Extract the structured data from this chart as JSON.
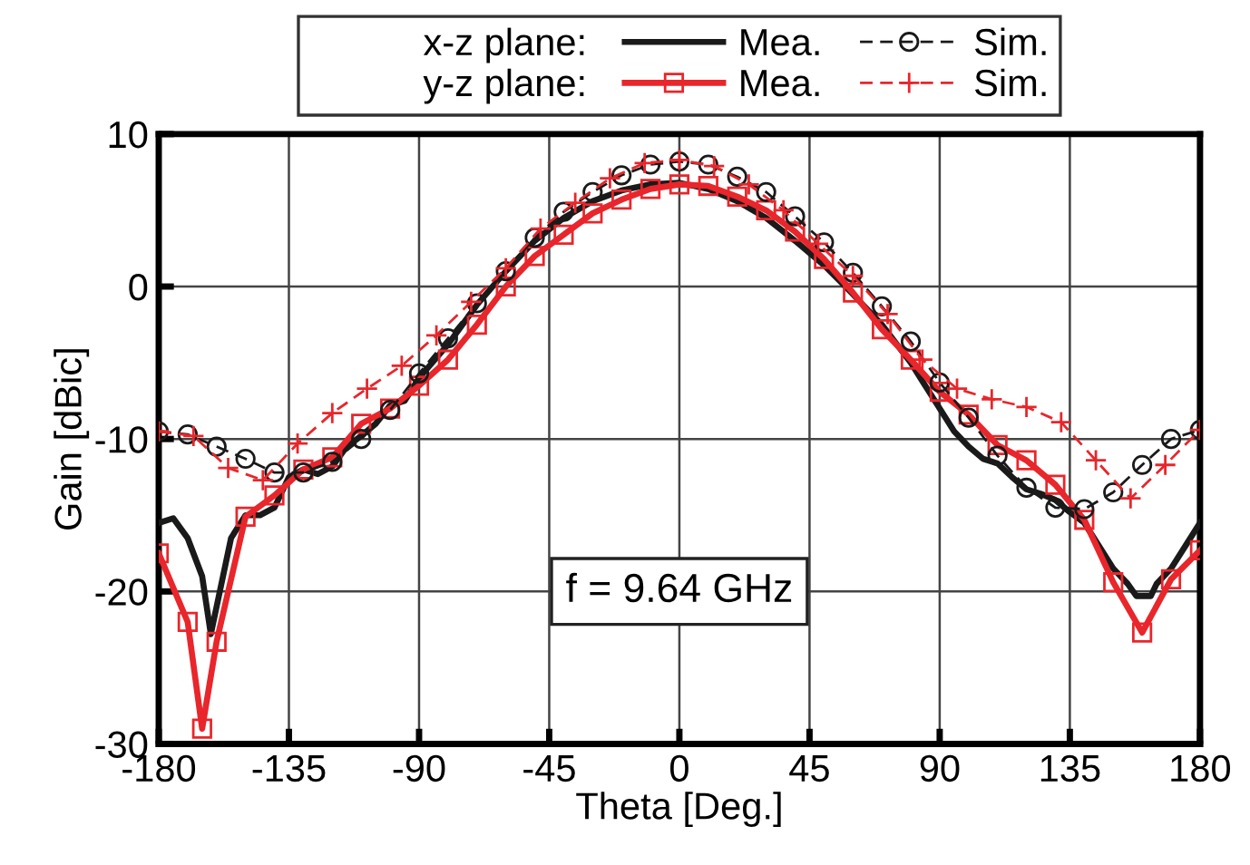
{
  "chart_data": {
    "type": "line",
    "xlabel": "Theta [Deg.]",
    "ylabel": "Gain [dBic]",
    "annotations": [
      "x-z plane:",
      "y-z plane:",
      "f = 9.64 GHz"
    ],
    "xlim": [
      -180,
      180
    ],
    "xticks": [
      -180,
      -135,
      -90,
      -45,
      0,
      45,
      90,
      135,
      180
    ],
    "ylim": [
      -30,
      10
    ],
    "yticks": [
      -30,
      -20,
      -10,
      0,
      10
    ],
    "grid": true,
    "legend": "top",
    "series": [
      {
        "name": "Mea.",
        "color": "#1a1a1a",
        "marker": "none",
        "line_style": "solid",
        "x": [
          -180,
          -175,
          -170,
          -165,
          -162,
          -160,
          -155,
          -150,
          -145,
          -140,
          -135,
          -130,
          -125,
          -120,
          -115,
          -110,
          -105,
          -100,
          -95,
          -90,
          -80,
          -70,
          -60,
          -50,
          -40,
          -30,
          -20,
          -10,
          0,
          10,
          20,
          30,
          40,
          50,
          60,
          70,
          80,
          90,
          95,
          100,
          105,
          110,
          115,
          120,
          125,
          130,
          135,
          140,
          145,
          150,
          155,
          158,
          163,
          165,
          170,
          175,
          180
        ],
        "values": [
          -15.5,
          -15.2,
          -16.5,
          -19,
          -22.8,
          -21,
          -16.5,
          -15,
          -15,
          -14.5,
          -12.5,
          -12,
          -12.3,
          -11.8,
          -10.5,
          -9.8,
          -9,
          -7.8,
          -7.5,
          -6,
          -3.8,
          -1.2,
          1,
          3,
          4.5,
          5.6,
          6.3,
          6.7,
          6.8,
          6.4,
          5.6,
          4.5,
          3,
          1.4,
          -0.5,
          -2.5,
          -5,
          -8,
          -9.5,
          -10.5,
          -11.3,
          -11.6,
          -12.5,
          -13.3,
          -13.6,
          -14,
          -14.8,
          -15.5,
          -17,
          -18.5,
          -19.5,
          -20.3,
          -20.3,
          -19.5,
          -18.5,
          -17,
          -15.5
        ]
      },
      {
        "name": "Mea.",
        "color": "#e8262b",
        "marker": "square",
        "line_style": "solid",
        "x": [
          -180,
          -170,
          -165,
          -160,
          -150,
          -140,
          -130,
          -120,
          -110,
          -100,
          -90,
          -80,
          -70,
          -60,
          -50,
          -40,
          -30,
          -20,
          -10,
          0,
          10,
          20,
          30,
          40,
          50,
          60,
          70,
          80,
          90,
          100,
          110,
          120,
          130,
          140,
          150,
          160,
          170,
          180
        ],
        "values": [
          -17.5,
          -22,
          -29,
          -23.3,
          -15.1,
          -13.7,
          -12,
          -11.2,
          -9,
          -8,
          -6.5,
          -4.8,
          -2.5,
          0,
          2,
          3.4,
          4.8,
          5.7,
          6.4,
          6.7,
          6.6,
          5.9,
          5,
          3.6,
          1.8,
          -0.4,
          -2.8,
          -4.8,
          -6.9,
          -8.4,
          -10.4,
          -11.4,
          -13,
          -15.3,
          -19.4,
          -22.7,
          -19.2,
          -17.3
        ]
      },
      {
        "name": "Sim.",
        "color": "#1a1a1a",
        "marker": "circle",
        "line_style": "dashed",
        "x": [
          -180,
          -170,
          -160,
          -150,
          -140,
          -130,
          -120,
          -110,
          -100,
          -90,
          -80,
          -70,
          -60,
          -50,
          -40,
          -30,
          -20,
          -10,
          0,
          10,
          20,
          30,
          40,
          50,
          60,
          70,
          80,
          90,
          100,
          110,
          120,
          130,
          140,
          150,
          160,
          170,
          180
        ],
        "values": [
          -9.5,
          -9.7,
          -10.5,
          -11.3,
          -12.2,
          -12.2,
          -11.5,
          -10,
          -8.1,
          -5.7,
          -3.4,
          -1.1,
          1,
          3.2,
          4.9,
          6.2,
          7.3,
          8,
          8.2,
          8,
          7.2,
          6.2,
          4.6,
          2.9,
          0.9,
          -1.3,
          -3.6,
          -6.3,
          -8.6,
          -11.1,
          -13.2,
          -14.5,
          -14.6,
          -13.5,
          -11.7,
          -10,
          -9.4
        ]
      },
      {
        "name": "Sim.",
        "color": "#e8262b",
        "marker": "cross",
        "line_style": "dashed",
        "x": [
          -180,
          -168,
          -156,
          -144,
          -132,
          -120,
          -108,
          -96,
          -84,
          -72,
          -60,
          -48,
          -36,
          -24,
          -12,
          0,
          12,
          24,
          36,
          48,
          60,
          72,
          84,
          96,
          108,
          120,
          132,
          144,
          156,
          168,
          180
        ],
        "values": [
          -9.5,
          -9.8,
          -11.9,
          -12.7,
          -10.3,
          -8.3,
          -6.7,
          -5.2,
          -3.2,
          -1,
          1.2,
          3.8,
          5.5,
          7.1,
          8.1,
          8.3,
          7.9,
          6.7,
          5,
          2.8,
          0.7,
          -1.8,
          -4.8,
          -6.7,
          -7.4,
          -7.9,
          -8.9,
          -11.4,
          -13.9,
          -11.7,
          -9.4
        ]
      }
    ]
  }
}
